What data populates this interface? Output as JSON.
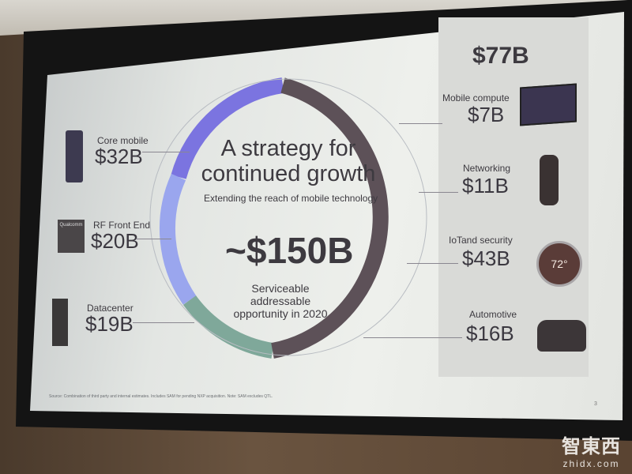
{
  "slide": {
    "title": "A strategy for continued growth",
    "subtitle": "Extending the reach of mobile technology",
    "total": "~$150B",
    "total_caption": "Serviceable addressable opportunity in 2020",
    "left_items": [
      {
        "label": "Core mobile",
        "value": "$32B"
      },
      {
        "label": "RF Front End",
        "value": "$20B"
      },
      {
        "label": "Datacenter",
        "value": "$19B"
      }
    ],
    "chip_label": "Qualcomm",
    "right_total": "$77B",
    "right_items": [
      {
        "label": "Mobile compute",
        "value": "$7B"
      },
      {
        "label": "Networking",
        "value": "$11B"
      },
      {
        "label": "IoTand security",
        "value": "$43B"
      },
      {
        "label": "Automotive",
        "value": "$16B"
      }
    ],
    "thermostat_reading": "72°",
    "footnote": "Source: Combination of third party and internal estimates. Includes SAM for pending NXP acquisition. Note: SAM excludes QTL.",
    "page_number": "3",
    "colors": {
      "core": "#7b74e0",
      "rf": "#9aa6ee",
      "datacenter": "#7fa89a",
      "adjacent": "#5d5158"
    }
  },
  "watermark": {
    "brand": "智東西",
    "url": "zhidx.com"
  }
}
